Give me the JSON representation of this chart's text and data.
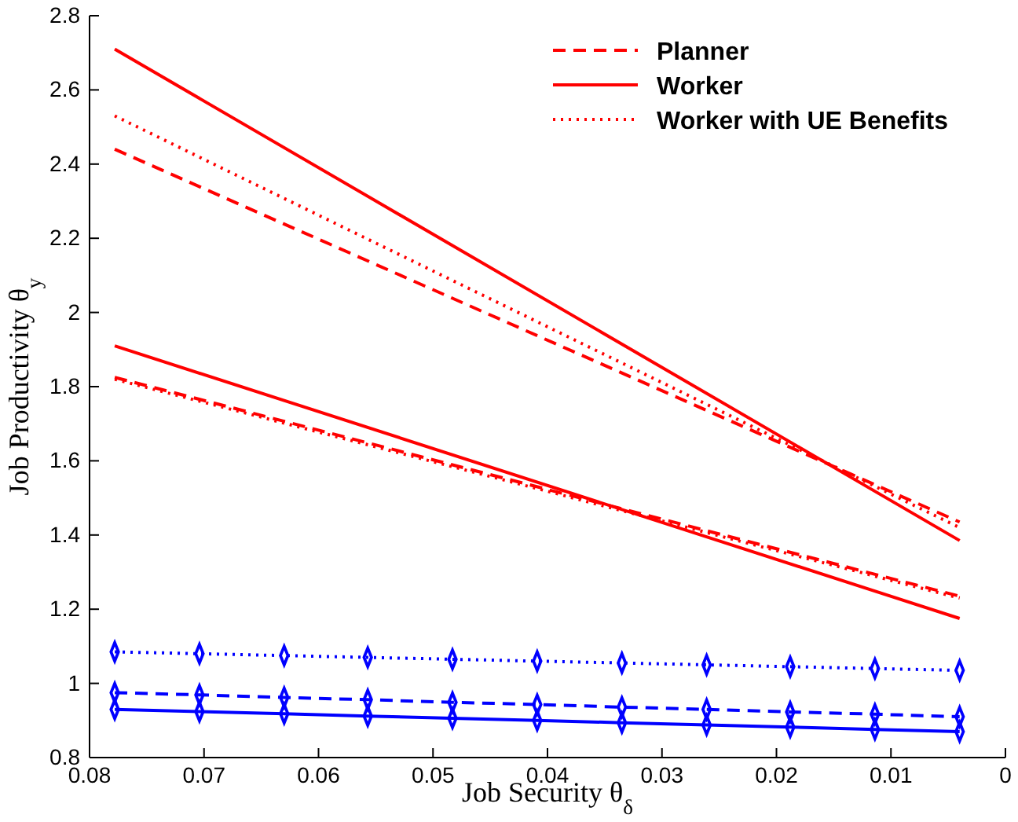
{
  "chart_data": {
    "type": "line",
    "xlabel": "Job Security θ$_{δ}$",
    "ylabel": "Job Productivity θ$_{y}$",
    "xlim": [
      0.08,
      0
    ],
    "xticks": [
      {
        "value": 0.08,
        "label": "0.08"
      },
      {
        "value": 0.07,
        "label": "0.07"
      },
      {
        "value": 0.06,
        "label": "0.06"
      },
      {
        "value": 0.05,
        "label": "0.05"
      },
      {
        "value": 0.04,
        "label": "0.04"
      },
      {
        "value": 0.03,
        "label": "0.03"
      },
      {
        "value": 0.02,
        "label": "0.02"
      },
      {
        "value": 0.01,
        "label": "0.01"
      },
      0
    ],
    "ylim": [
      0.8,
      2.8
    ],
    "yticks": [
      0.8,
      1,
      1.2,
      1.4,
      1.6,
      1.8,
      2,
      2.2,
      2.4,
      2.6,
      2.8
    ],
    "legend": "top right",
    "grid": false,
    "series": [
      {
        "name": "Planner",
        "color": "#ff0000",
        "line_style": "dashed",
        "marker": "none",
        "x": [
          0.0778,
          0.004
        ],
        "values": [
          2.44,
          1.435
        ]
      },
      {
        "name": "Worker",
        "color": "#ff0000",
        "line_style": "solid",
        "marker": "none",
        "x": [
          0.0778,
          0.004
        ],
        "values": [
          2.71,
          1.385
        ]
      },
      {
        "name": "Worker with UE Benefits",
        "color": "#ff0000",
        "line_style": "dotted",
        "marker": "none",
        "x": [
          0.0778,
          0.004
        ],
        "values": [
          2.53,
          1.42
        ]
      },
      {
        "color": "#ff0000",
        "line_style": "dashed",
        "marker": "none",
        "x": [
          0.0778,
          0.004
        ],
        "values": [
          1.825,
          1.235
        ]
      },
      {
        "color": "#ff0000",
        "line_style": "solid",
        "marker": "none",
        "x": [
          0.0778,
          0.004
        ],
        "values": [
          1.91,
          1.175
        ]
      },
      {
        "color": "#ff0000",
        "line_style": "dotted",
        "marker": "none",
        "x": [
          0.0778,
          0.004
        ],
        "values": [
          1.82,
          1.23
        ]
      },
      {
        "color": "#0000ff",
        "line_style": "dashed",
        "marker": "diamond",
        "x": [
          0.0778,
          0.0704,
          0.063,
          0.0557,
          0.0483,
          0.0409,
          0.0335,
          0.0261,
          0.0188,
          0.0114,
          0.004
        ],
        "values": [
          0.975,
          0.969,
          0.962,
          0.956,
          0.949,
          0.943,
          0.936,
          0.93,
          0.923,
          0.917,
          0.91
        ]
      },
      {
        "color": "#0000ff",
        "line_style": "solid",
        "marker": "diamond",
        "x": [
          0.0778,
          0.0704,
          0.063,
          0.0557,
          0.0483,
          0.0409,
          0.0335,
          0.0261,
          0.0188,
          0.0114,
          0.004
        ],
        "values": [
          0.93,
          0.924,
          0.918,
          0.912,
          0.906,
          0.9,
          0.894,
          0.888,
          0.882,
          0.876,
          0.87
        ]
      },
      {
        "color": "#0000ff",
        "line_style": "dotted",
        "marker": "diamond",
        "x": [
          0.0778,
          0.0704,
          0.063,
          0.0557,
          0.0483,
          0.0409,
          0.0335,
          0.0261,
          0.0188,
          0.0114,
          0.004
        ],
        "values": [
          1.085,
          1.08,
          1.075,
          1.07,
          1.065,
          1.06,
          1.055,
          1.05,
          1.045,
          1.04,
          1.035
        ]
      }
    ]
  }
}
